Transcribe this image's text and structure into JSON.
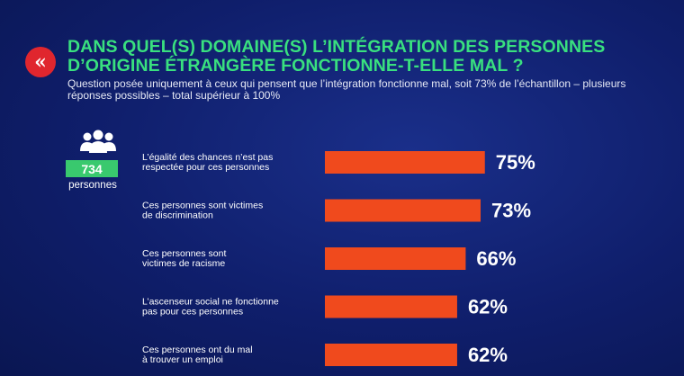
{
  "header": {
    "quote_icon": "«",
    "title": "DANS QUEL(S) DOMAINE(S) L’INTÉGRATION DES PERSONNES D’ORIGINE ÉTRANGÈRE FONCTIONNE-T-ELLE MAL ?",
    "subtitle": "Question posée uniquement à ceux qui pensent que l’intégration fonctionne mal, soit 73% de l’échantillon – plusieurs réponses possibles – total supérieur à 100%"
  },
  "sample": {
    "icon": "people-icon",
    "count": "734",
    "label": "personnes"
  },
  "colors": {
    "background": "#0f1e6b",
    "title": "#39e07f",
    "bar": "#f04a1d",
    "badge": "#e0262e",
    "count_box": "#39c96e"
  },
  "chart_data": {
    "type": "bar",
    "orientation": "horizontal",
    "categories": [
      [
        "L’égalité des chances n’est pas",
        "respectée pour ces personnes"
      ],
      [
        "Ces personnes sont victimes",
        "de discrimination"
      ],
      [
        "Ces personnes sont",
        "victimes de racisme"
      ],
      [
        "L’ascenseur social ne fonctionne",
        "pas pour ces personnes"
      ],
      [
        "Ces personnes ont du mal",
        "à trouver un emploi"
      ]
    ],
    "values": [
      75,
      73,
      66,
      62,
      62
    ],
    "value_labels": [
      "75%",
      "73%",
      "66%",
      "62%",
      "62%"
    ],
    "unit": "%",
    "grid": false,
    "legend": "none"
  }
}
